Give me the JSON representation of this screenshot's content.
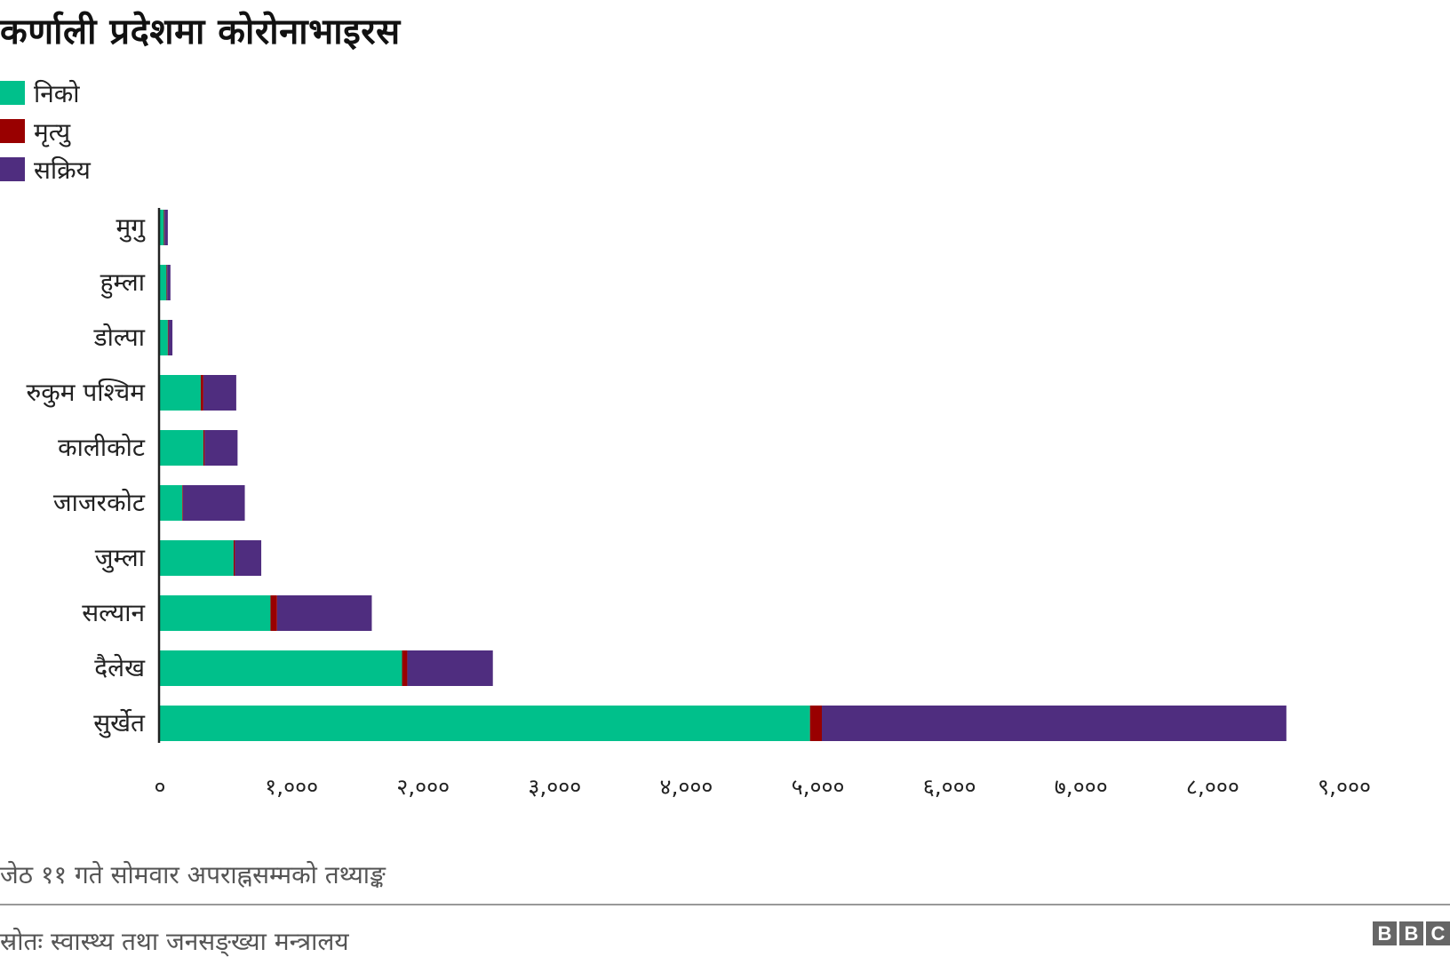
{
  "title": "कर्णाली प्रदेशमा कोरोनाभाइरस",
  "legend": [
    {
      "label": "निको",
      "color": "#00c08b"
    },
    {
      "label": "मृत्यु",
      "color": "#990000"
    },
    {
      "label": "सक्रिय",
      "color": "#4f2d7f"
    }
  ],
  "chart_data": {
    "type": "bar",
    "orientation": "horizontal",
    "stacked": true,
    "categories": [
      "मुगु",
      "हुम्ला",
      "डोल्पा",
      "रुकुम पश्चिम",
      "कालीकोट",
      "जाजरकोट",
      "जुम्ला",
      "सल्यान",
      "दैलेख",
      "सुर्खेत"
    ],
    "series": [
      {
        "name": "निको",
        "color": "#00c08b",
        "values": [
          30,
          50,
          60,
          310,
          330,
          170,
          560,
          840,
          1840,
          4940
        ]
      },
      {
        "name": "मृत्यु",
        "color": "#990000",
        "values": [
          5,
          5,
          5,
          20,
          10,
          5,
          10,
          50,
          40,
          90
        ]
      },
      {
        "name": "सक्रिय",
        "color": "#4f2d7f",
        "values": [
          25,
          25,
          30,
          250,
          250,
          470,
          200,
          720,
          650,
          3530
        ]
      }
    ],
    "xlim": [
      0,
      9000
    ],
    "xticks": [
      0,
      1000,
      2000,
      3000,
      4000,
      5000,
      6000,
      7000,
      8000,
      9000
    ],
    "xtick_labels": [
      "०",
      "१,०००",
      "२,०००",
      "३,०००",
      "४,०००",
      "५,०००",
      "६,०००",
      "७,०००",
      "८,०००",
      "९,०००"
    ],
    "grid": false,
    "legend_position": "top-left"
  },
  "footnote": "जेठ ११ गते सोमवार अपराह्नसम्मको तथ्याङ्क",
  "source": "स्रोतः स्वास्थ्य तथा जनसङ्ख्या मन्त्रालय",
  "logo_letters": [
    "B",
    "B",
    "C"
  ]
}
